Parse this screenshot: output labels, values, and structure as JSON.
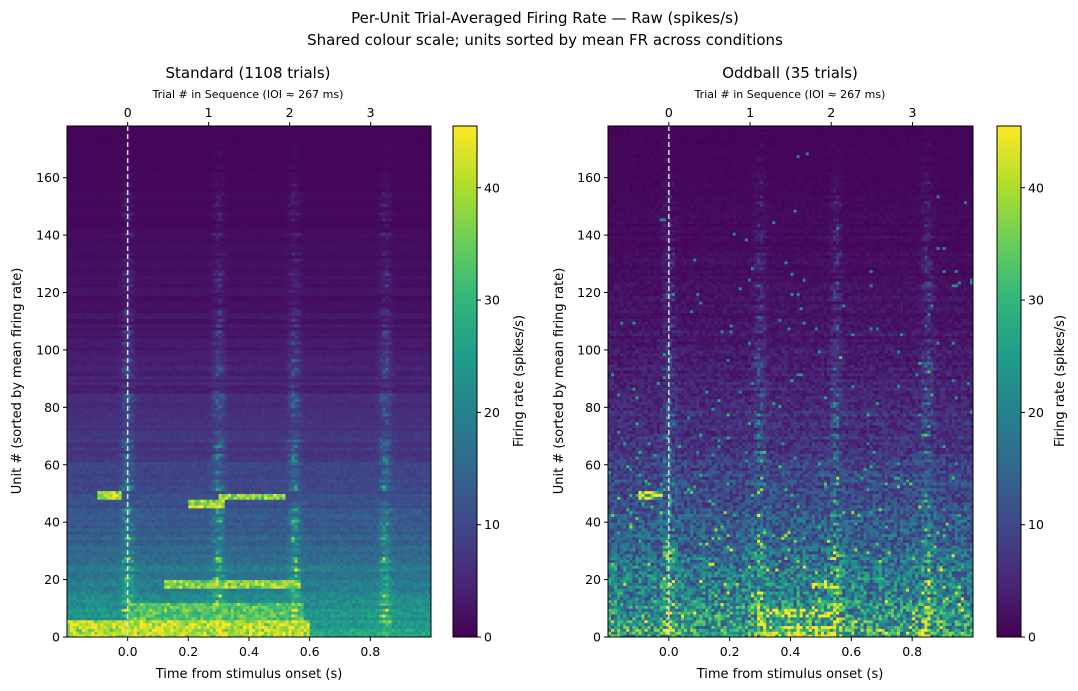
{
  "figure": {
    "suptitle_line1": "Per-Unit Trial-Averaged Firing Rate — Raw (spikes/s)",
    "suptitle_line2": "Shared colour scale; units sorted by mean FR across conditions"
  },
  "colorscale": {
    "name": "viridis",
    "min": 0,
    "max": 45.5,
    "stops": [
      "#440154",
      "#482878",
      "#3e4989",
      "#31688e",
      "#26828e",
      "#1f9e89",
      "#35b779",
      "#6ece58",
      "#b5de2b",
      "#fde725"
    ]
  },
  "chart_data": [
    {
      "type": "heatmap",
      "title": "Standard (1108 trials)",
      "xlabel": "Time from stimulus onset (s)",
      "ylabel": "Unit # (sorted by mean firing rate)",
      "top_xlabel": "Trial # in Sequence (IOI ≈ 267 ms)",
      "xlim": [
        -0.2,
        1.0
      ],
      "ylim": [
        0,
        178
      ],
      "xticks": [
        0.0,
        0.2,
        0.4,
        0.6,
        0.8
      ],
      "xtick_labels": [
        "0.0",
        "0.2",
        "0.4",
        "0.6",
        "0.8"
      ],
      "yticks": [
        0,
        20,
        40,
        60,
        80,
        100,
        120,
        140,
        160
      ],
      "ytick_labels": [
        "0",
        "20",
        "40",
        "60",
        "80",
        "100",
        "120",
        "140",
        "160"
      ],
      "top_xticks": [
        0,
        0.267,
        0.534,
        0.801
      ],
      "top_xtick_labels": [
        "0",
        "1",
        "2",
        "3"
      ],
      "onset_line_x": 0.0,
      "colorbar_label": "Firing rate (spikes/s)",
      "colorbar_ticks": [
        0,
        10,
        20,
        30,
        40
      ],
      "colorbar_tick_labels": [
        "0",
        "10",
        "20",
        "30",
        "40"
      ],
      "n_units": 178,
      "n_time_bins": 120,
      "noise_level": 0.12,
      "response_times": [
        0.0,
        0.3,
        0.55,
        0.85
      ],
      "bright_bands": [
        {
          "units": [
            0,
            6
          ],
          "t_start": -0.2,
          "t_end": 0.6,
          "value": 42
        },
        {
          "units": [
            6,
            12
          ],
          "t_start": 0.0,
          "t_end": 0.58,
          "value": 34
        },
        {
          "units": [
            17,
            20
          ],
          "t_start": 0.12,
          "t_end": 0.57,
          "value": 38
        },
        {
          "units": [
            45,
            48
          ],
          "t_start": 0.2,
          "t_end": 0.32,
          "value": 40
        },
        {
          "units": [
            48,
            50
          ],
          "t_start": 0.3,
          "t_end": 0.52,
          "value": 38
        },
        {
          "units": [
            48,
            51
          ],
          "t_start": -0.1,
          "t_end": -0.02,
          "value": 40
        }
      ]
    },
    {
      "type": "heatmap",
      "title": "Oddball  (35 trials)",
      "xlabel": "Time from stimulus onset (s)",
      "ylabel": "Unit # (sorted by mean firing rate)",
      "top_xlabel": "Trial # in Sequence (IOI ≈ 267 ms)",
      "xlim": [
        -0.2,
        1.0
      ],
      "ylim": [
        0,
        178
      ],
      "xticks": [
        0.0,
        0.2,
        0.4,
        0.6,
        0.8
      ],
      "xtick_labels": [
        "0.0",
        "0.2",
        "0.4",
        "0.6",
        "0.8"
      ],
      "yticks": [
        0,
        20,
        40,
        60,
        80,
        100,
        120,
        140,
        160
      ],
      "ytick_labels": [
        "0",
        "20",
        "40",
        "60",
        "80",
        "100",
        "120",
        "140",
        "160"
      ],
      "top_xticks": [
        0,
        0.267,
        0.534,
        0.801
      ],
      "top_xtick_labels": [
        "0",
        "1",
        "2",
        "3"
      ],
      "onset_line_x": 0.0,
      "colorbar_label": "Firing rate (spikes/s)",
      "colorbar_ticks": [
        0,
        10,
        20,
        30,
        40
      ],
      "colorbar_tick_labels": [
        "0",
        "10",
        "20",
        "30",
        "40"
      ],
      "n_units": 178,
      "n_time_bins": 120,
      "noise_level": 0.55,
      "response_times": [
        0.0,
        0.3,
        0.55,
        0.85
      ],
      "bright_bands": [
        {
          "units": [
            0,
            4
          ],
          "t_start": 0.3,
          "t_end": 0.58,
          "value": 42
        },
        {
          "units": [
            7,
            10
          ],
          "t_start": 0.32,
          "t_end": 0.56,
          "value": 36
        },
        {
          "units": [
            17,
            19
          ],
          "t_start": 0.47,
          "t_end": 0.57,
          "value": 38
        },
        {
          "units": [
            48,
            51
          ],
          "t_start": -0.1,
          "t_end": -0.02,
          "value": 36
        }
      ]
    }
  ]
}
